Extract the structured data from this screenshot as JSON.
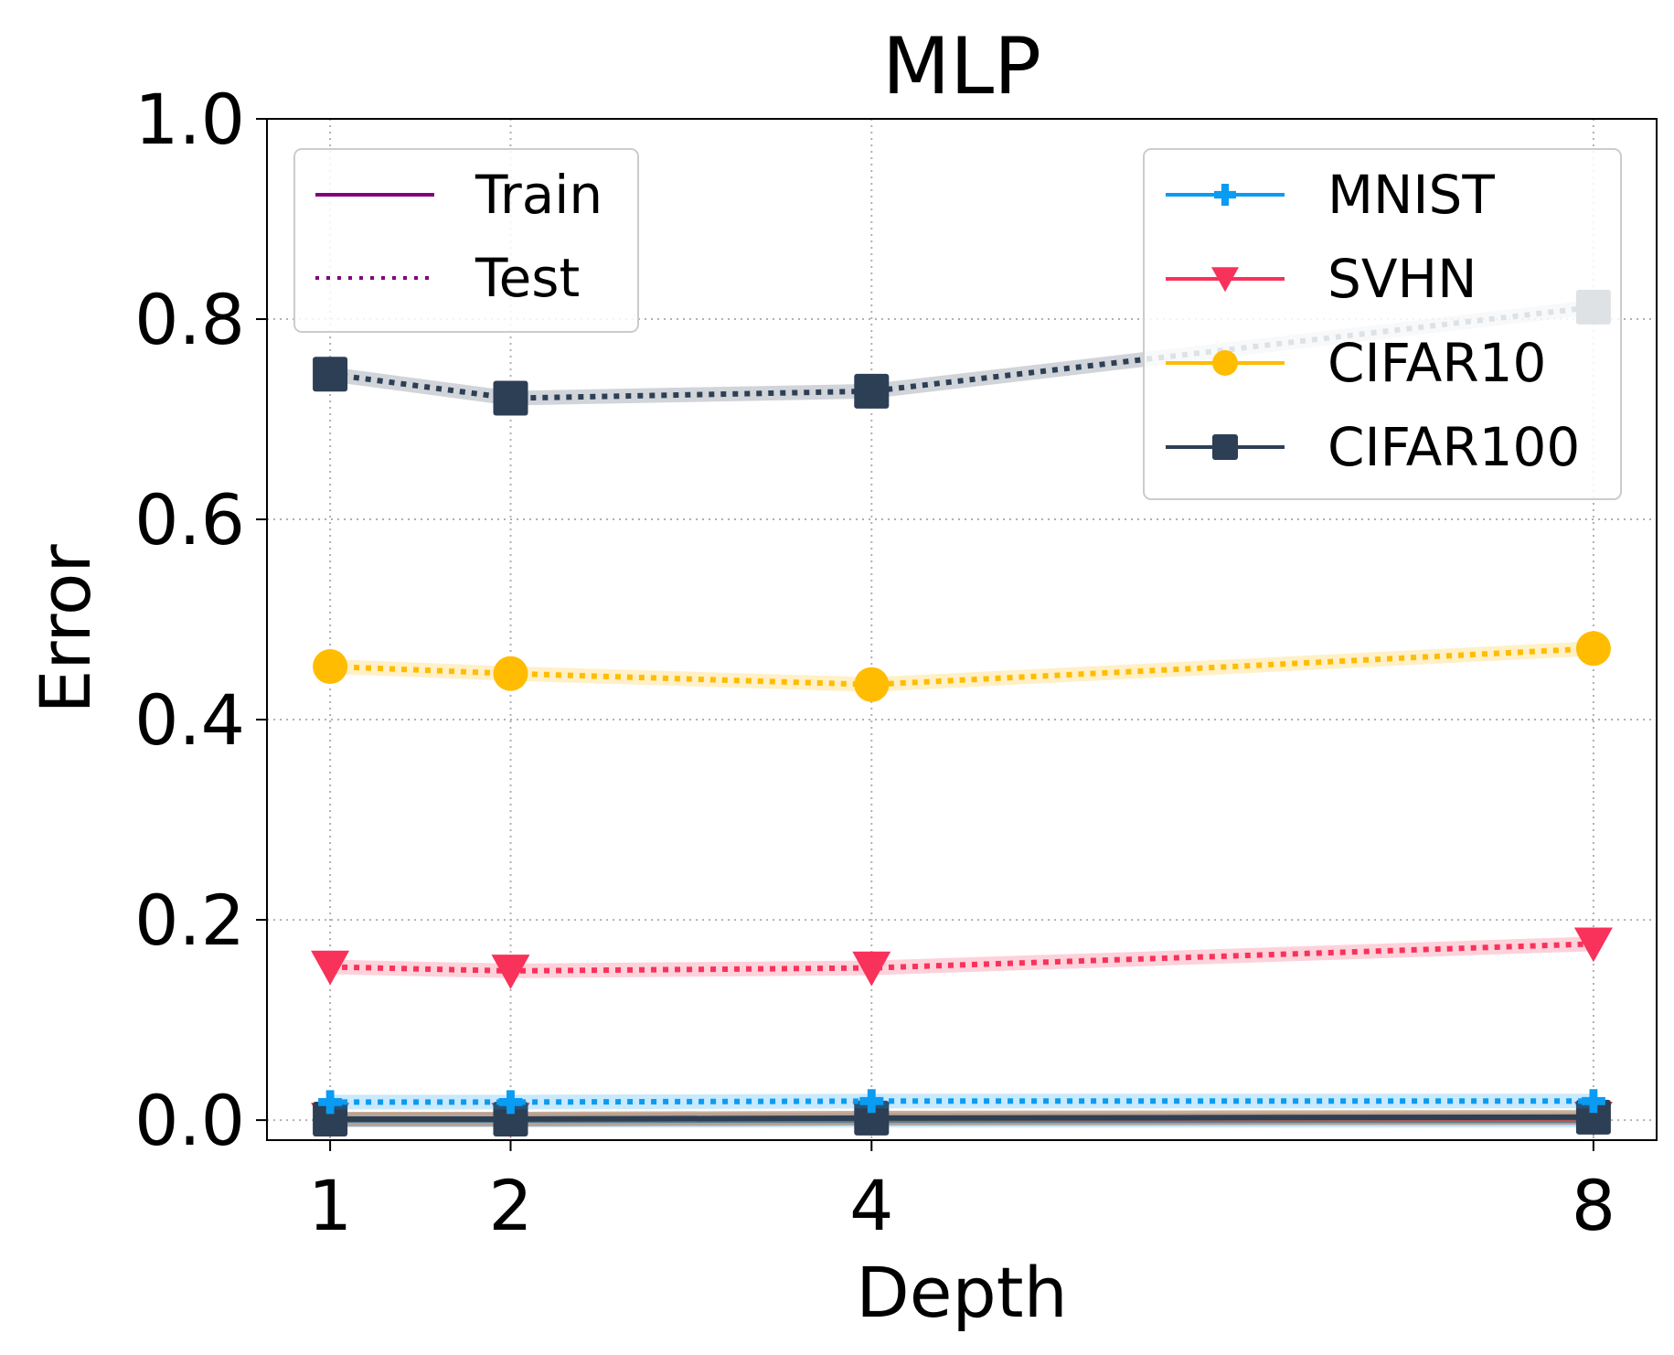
{
  "chart_data": {
    "type": "line",
    "title": "MLP",
    "xlabel": "Depth",
    "ylabel": "Error",
    "x": [
      1,
      2,
      4,
      8
    ],
    "x_tick_labels": [
      "1",
      "2",
      "4",
      "8"
    ],
    "xlim": [
      0.65,
      8.35
    ],
    "ylim": [
      -0.02,
      1.0
    ],
    "y_ticks": [
      0.0,
      0.2,
      0.4,
      0.6,
      0.8,
      1.0
    ],
    "y_tick_labels": [
      "0.0",
      "0.2",
      "0.4",
      "0.6",
      "0.8",
      "1.0"
    ],
    "grid": true,
    "style_legend": {
      "placement": "upper-left",
      "entries": [
        {
          "label": "Train",
          "dash": "solid",
          "color": "#800080"
        },
        {
          "label": "Test",
          "dash": "dotted",
          "color": "#800080"
        }
      ]
    },
    "dataset_legend": {
      "placement": "upper-right",
      "entries": [
        {
          "label": "MNIST",
          "marker": "plus",
          "color": "#0A9BF2"
        },
        {
          "label": "SVHN",
          "marker": "triangle-down",
          "color": "#F8325A"
        },
        {
          "label": "CIFAR10",
          "marker": "circle",
          "color": "#FFBC00"
        },
        {
          "label": "CIFAR100",
          "marker": "square",
          "color": "#2D3F55"
        }
      ]
    },
    "series": [
      {
        "name": "MNIST",
        "split": "Train",
        "color": "#0A9BF2",
        "marker": "plus",
        "values": [
          0.0,
          0.0,
          0.0,
          0.0
        ]
      },
      {
        "name": "MNIST",
        "split": "Test",
        "color": "#0A9BF2",
        "marker": "plus",
        "values": [
          0.018,
          0.018,
          0.019,
          0.019
        ]
      },
      {
        "name": "SVHN",
        "split": "Train",
        "color": "#F8325A",
        "marker": "triangle-down",
        "values": [
          0.001,
          0.001,
          0.002,
          0.002
        ]
      },
      {
        "name": "SVHN",
        "split": "Test",
        "color": "#F8325A",
        "marker": "triangle-down",
        "values": [
          0.153,
          0.149,
          0.152,
          0.176
        ]
      },
      {
        "name": "CIFAR10",
        "split": "Train",
        "color": "#FFBC00",
        "marker": "circle",
        "values": [
          0.001,
          0.001,
          0.002,
          0.003
        ]
      },
      {
        "name": "CIFAR10",
        "split": "Test",
        "color": "#FFBC00",
        "marker": "circle",
        "values": [
          0.453,
          0.446,
          0.435,
          0.471
        ]
      },
      {
        "name": "CIFAR100",
        "split": "Train",
        "color": "#2D3F55",
        "marker": "square",
        "values": [
          0.001,
          0.001,
          0.002,
          0.003
        ]
      },
      {
        "name": "CIFAR100",
        "split": "Test",
        "color": "#2D3F55",
        "marker": "square",
        "values": [
          0.745,
          0.721,
          0.728,
          0.812
        ]
      }
    ]
  }
}
